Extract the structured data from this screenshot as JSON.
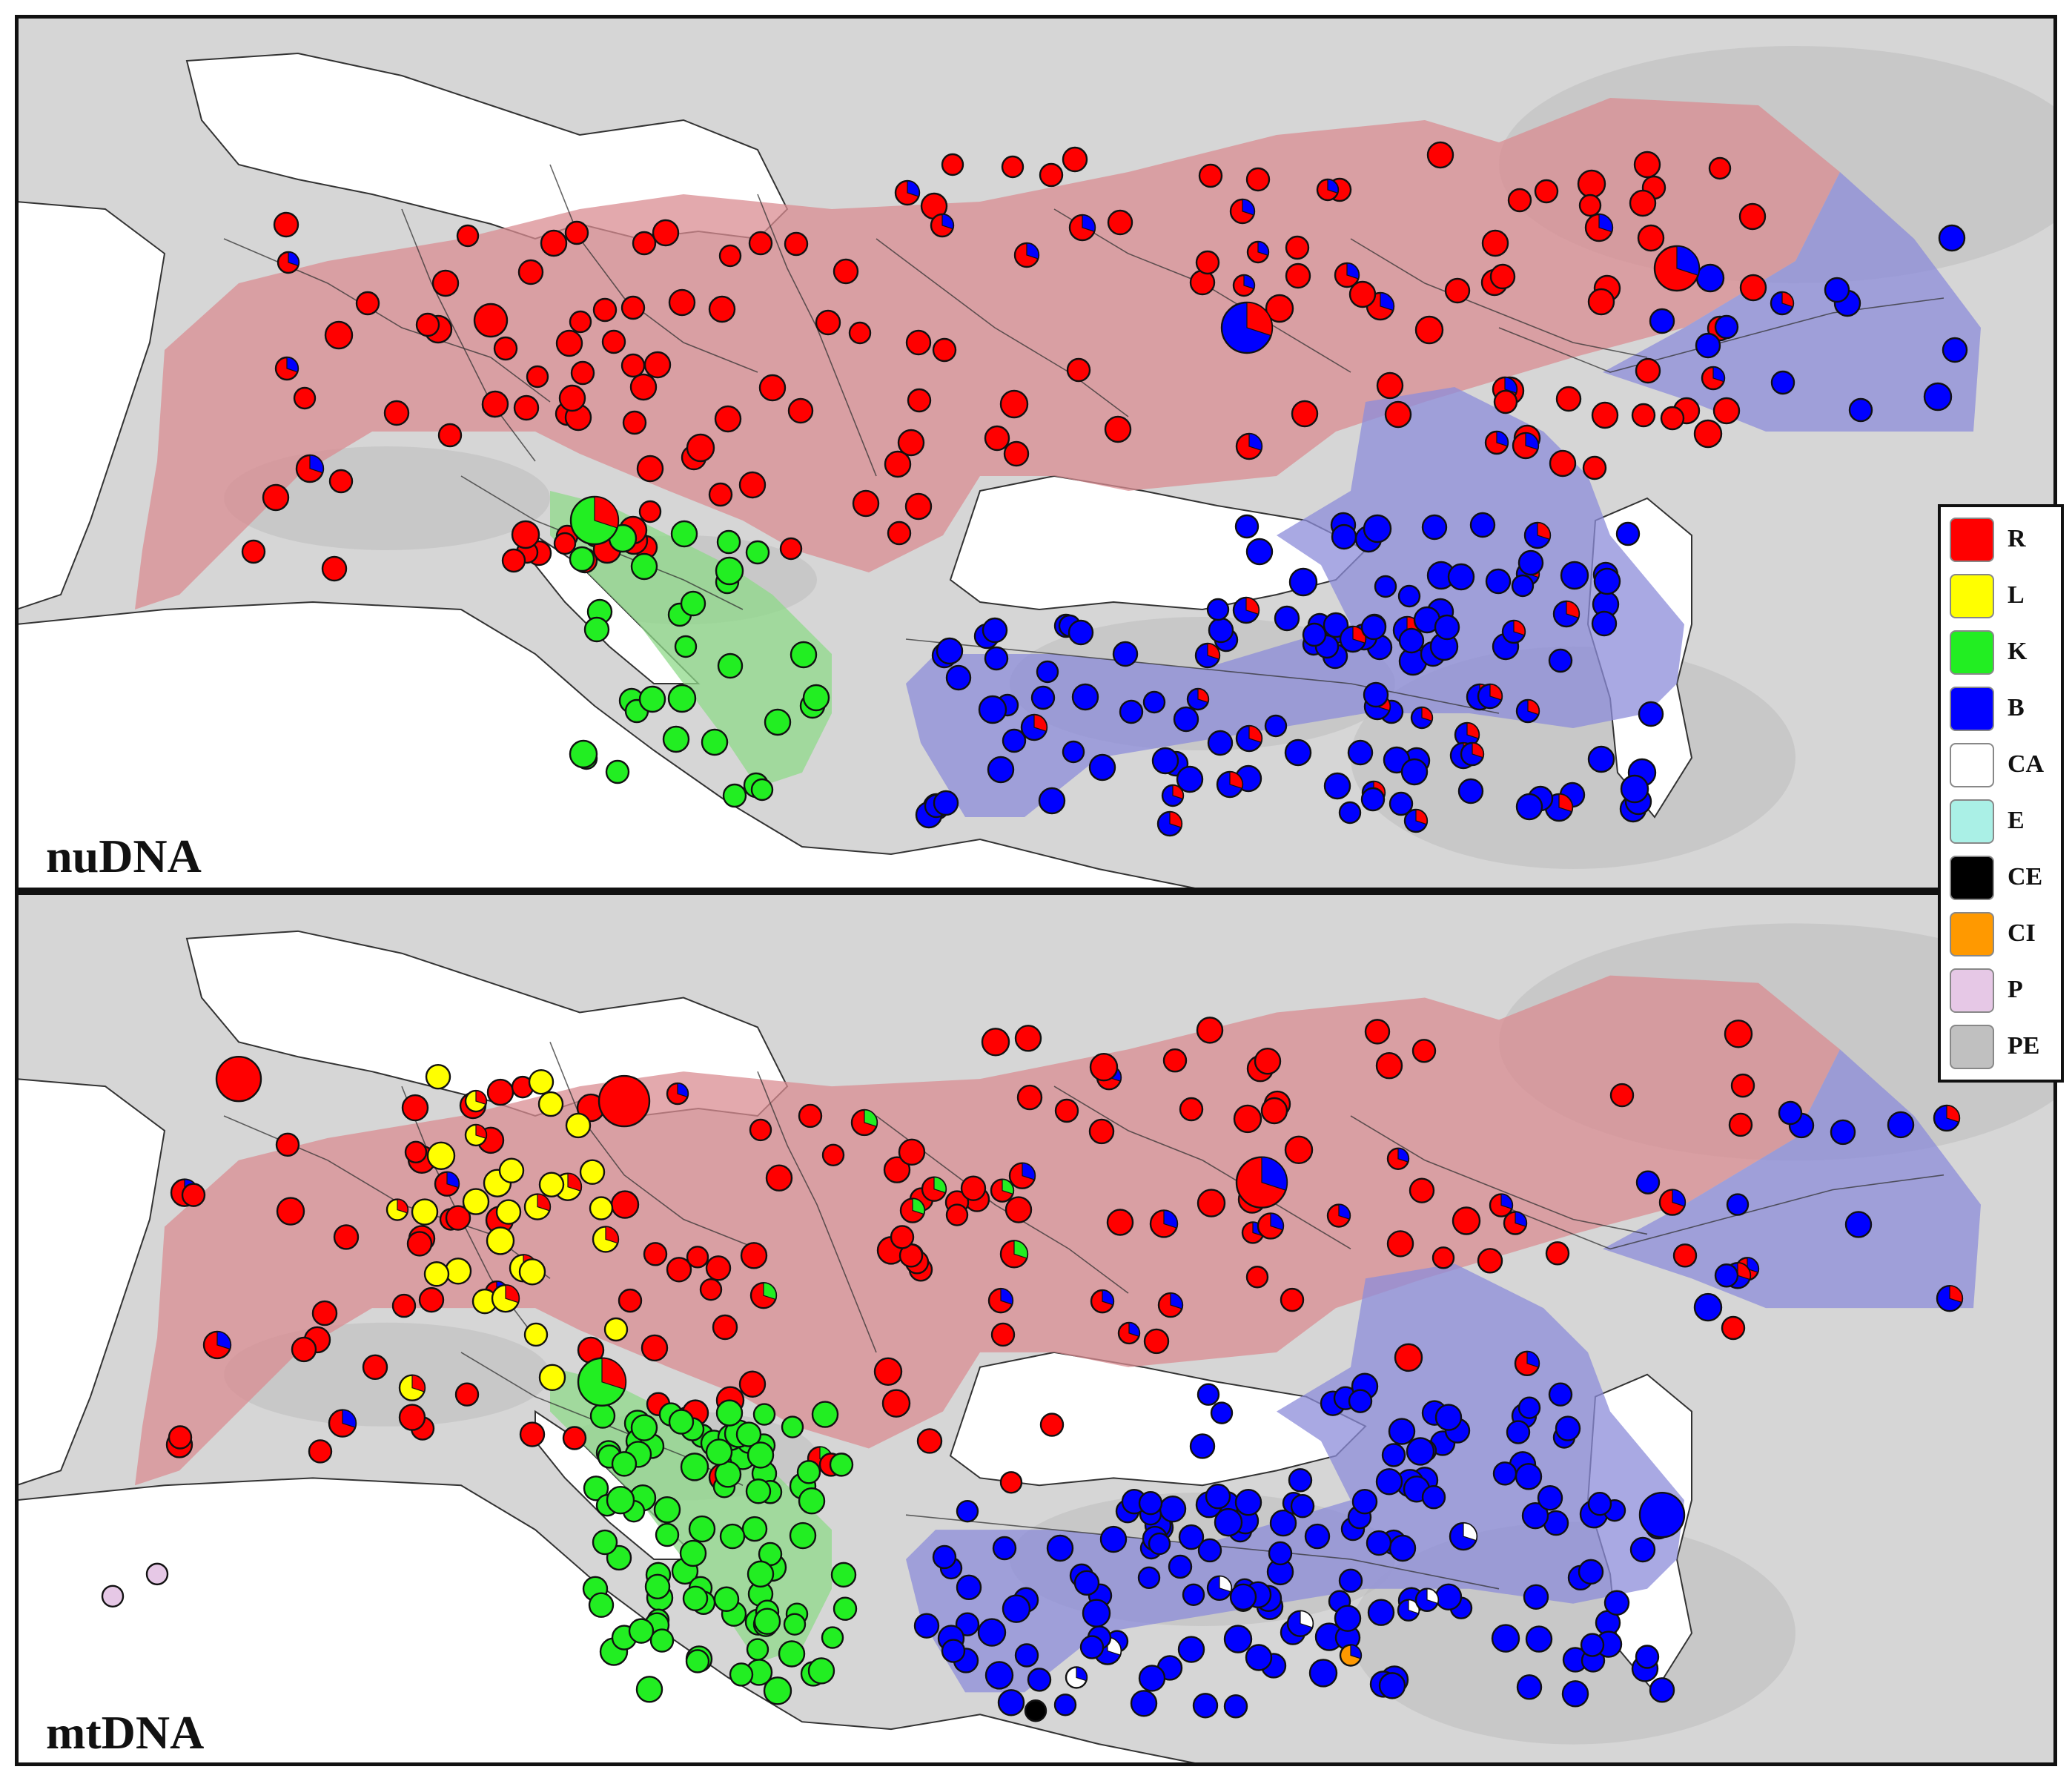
{
  "panels": [
    {
      "id": "nudna",
      "label": "nuDNA"
    },
    {
      "id": "mtdna",
      "label": "mtDNA"
    }
  ],
  "legend": [
    {
      "key": "R",
      "label": "R",
      "color": "#ff0000"
    },
    {
      "key": "L",
      "label": "L",
      "color": "#ffff00"
    },
    {
      "key": "K",
      "label": "K",
      "color": "#22ee22"
    },
    {
      "key": "B",
      "label": "B",
      "color": "#0000ff"
    },
    {
      "key": "CA",
      "label": "CA",
      "color": "#ffffff"
    },
    {
      "key": "E",
      "label": "E",
      "color": "#aaf0e6"
    },
    {
      "key": "CE",
      "label": "CE",
      "color": "#000000"
    },
    {
      "key": "CI",
      "label": "CI",
      "color": "#ff9900"
    },
    {
      "key": "P",
      "label": "P",
      "color": "#e6c8e6"
    },
    {
      "key": "PE",
      "label": "PE",
      "color": "#c0c0c0"
    }
  ],
  "range_colors": {
    "R": "#d98c92",
    "K": "#8fd98a",
    "B": "#8c8cd9"
  },
  "map_colors": {
    "land": "#d6d6d6",
    "sea": "#ffffff",
    "borders": "#333333"
  }
}
